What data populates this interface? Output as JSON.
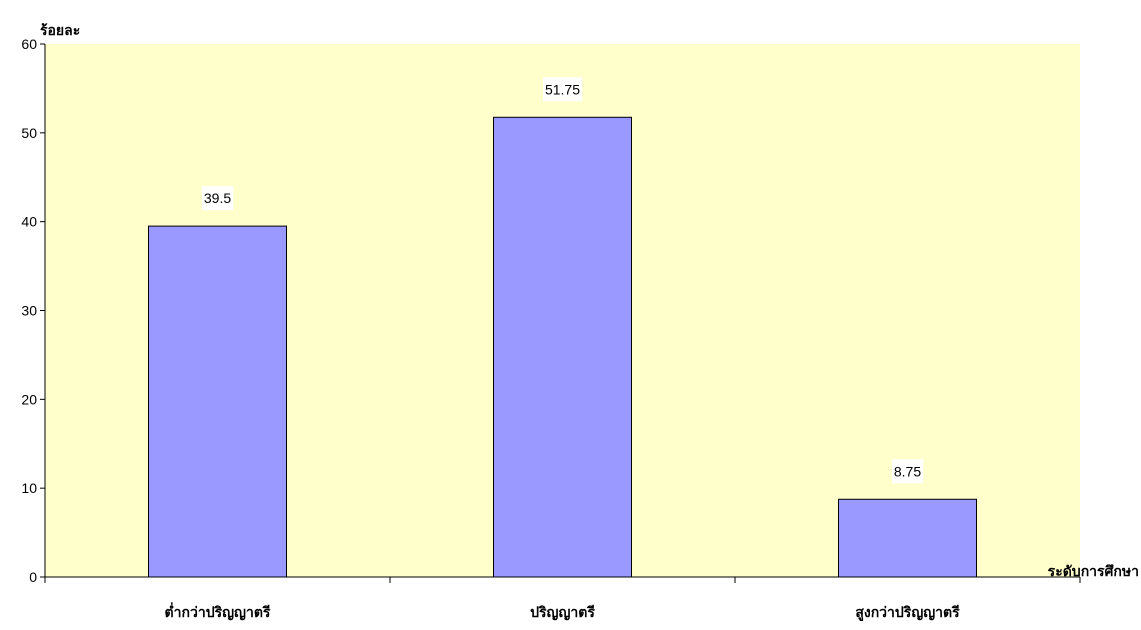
{
  "colors": {
    "plot_background": "#ffffcc",
    "bar_fill": "#9999ff",
    "bar_stroke": "#000000",
    "label_background": "#ffffff"
  },
  "chart_data": {
    "type": "bar",
    "title": "",
    "ylabel": "ร้อยละ",
    "xlabel": "ระดับการศึกษา",
    "categories": [
      "ต่ำกว่าปริญญาตรี",
      "ปริญญาตรี",
      "สูงกว่าปริญญาตรี"
    ],
    "values": [
      39.5,
      51.75,
      8.75
    ],
    "data_labels": [
      "39.5",
      "51.75",
      "8.75"
    ],
    "ylim": [
      0,
      60
    ],
    "yticks": [
      0,
      10,
      20,
      30,
      40,
      50,
      60
    ],
    "grid": false,
    "legend": "none"
  }
}
